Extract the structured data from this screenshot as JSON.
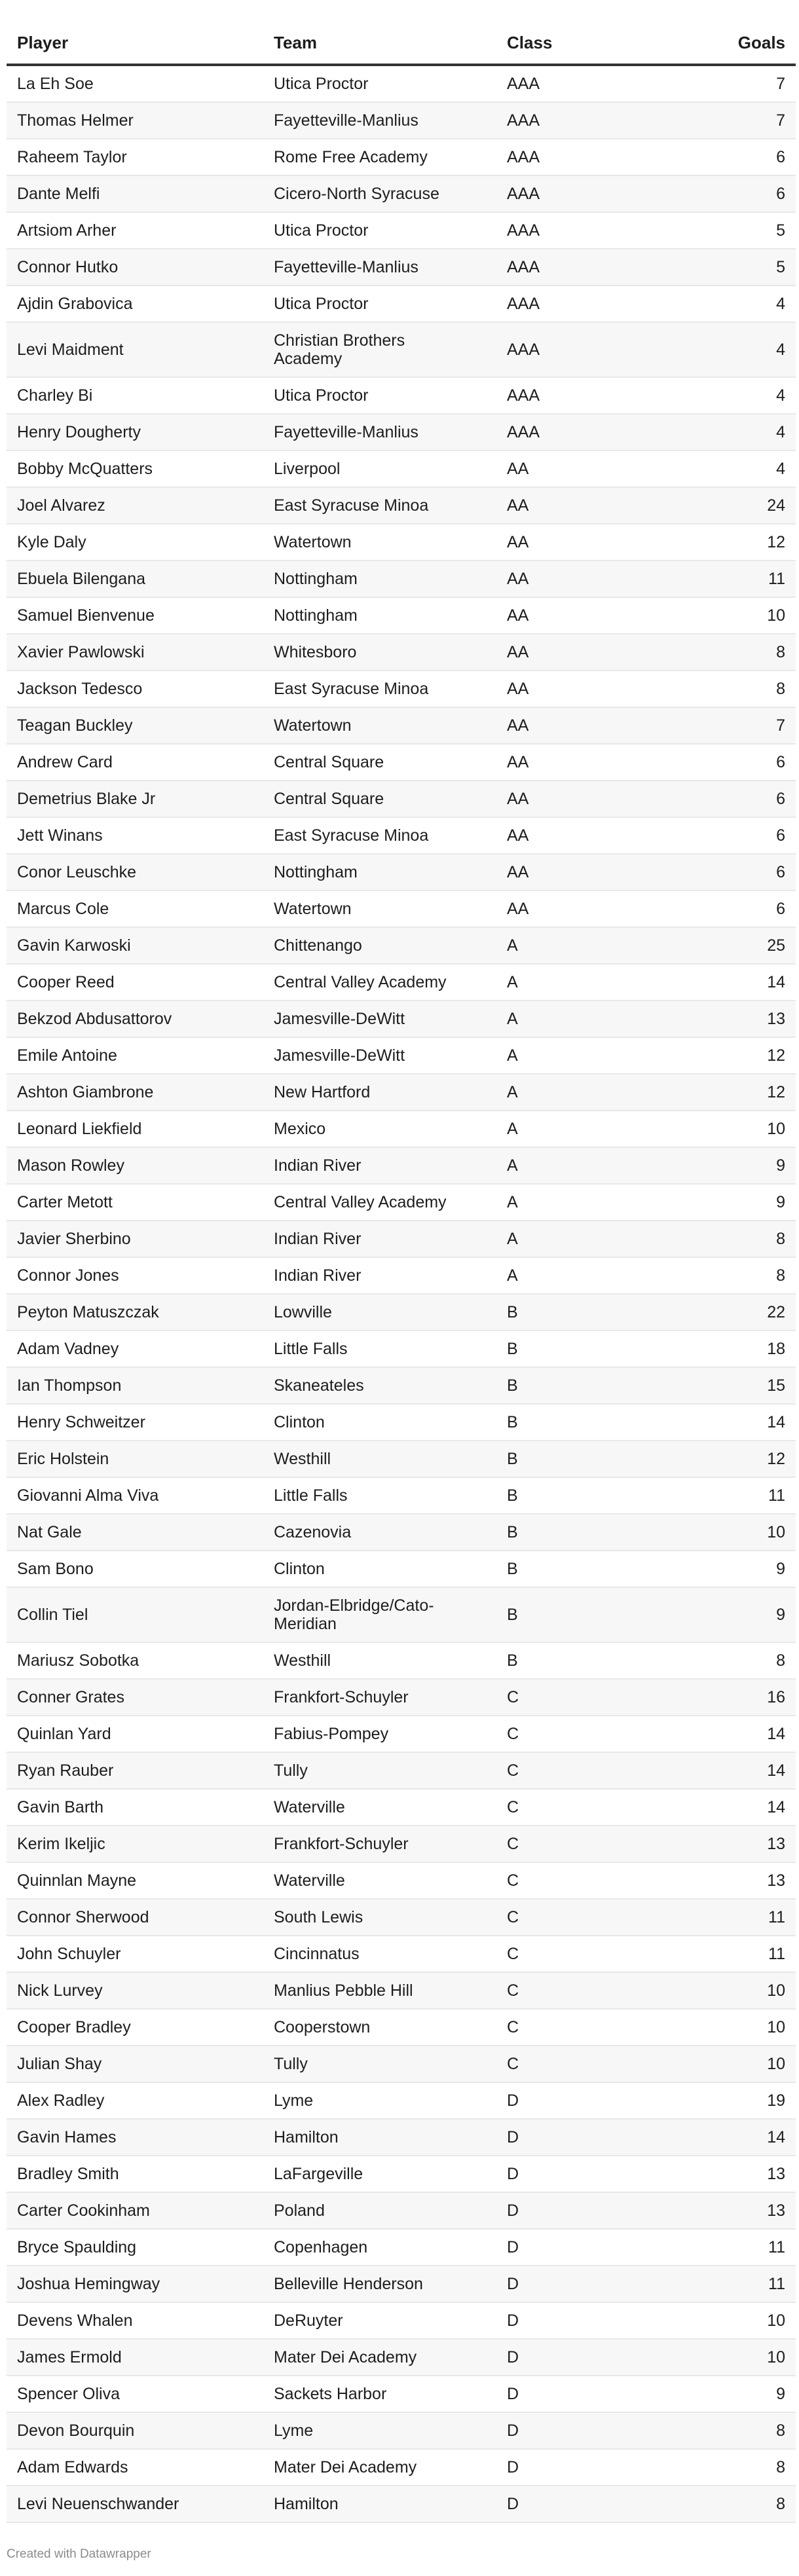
{
  "table": {
    "headers": {
      "player": "Player",
      "team": "Team",
      "class": "Class",
      "goals": "Goals"
    },
    "rows": [
      [
        "La Eh Soe",
        "Utica Proctor",
        "AAA",
        "7"
      ],
      [
        "Thomas Helmer",
        "Fayetteville-Manlius",
        "AAA",
        "7"
      ],
      [
        "Raheem Taylor",
        "Rome Free Academy",
        "AAA",
        "6"
      ],
      [
        "Dante Melfi",
        "Cicero-North Syracuse",
        "AAA",
        "6"
      ],
      [
        "Artsiom Arher",
        "Utica Proctor",
        "AAA",
        "5"
      ],
      [
        "Connor Hutko",
        "Fayetteville-Manlius",
        "AAA",
        "5"
      ],
      [
        "Ajdin Grabovica",
        "Utica Proctor",
        "AAA",
        "4"
      ],
      [
        "Levi Maidment",
        "Christian Brothers Academy",
        "AAA",
        "4"
      ],
      [
        "Charley Bi",
        "Utica Proctor",
        "AAA",
        "4"
      ],
      [
        "Henry Dougherty",
        "Fayetteville-Manlius",
        "AAA",
        "4"
      ],
      [
        "Bobby McQuatters",
        "Liverpool",
        "AA",
        "4"
      ],
      [
        "Joel Alvarez",
        "East Syracuse Minoa",
        "AA",
        "24"
      ],
      [
        "Kyle Daly",
        "Watertown",
        "AA",
        "12"
      ],
      [
        "Ebuela Bilengana",
        "Nottingham",
        "AA",
        "11"
      ],
      [
        "Samuel Bienvenue",
        "Nottingham",
        "AA",
        "10"
      ],
      [
        "Xavier Pawlowski",
        "Whitesboro",
        "AA",
        "8"
      ],
      [
        "Jackson Tedesco",
        "East Syracuse Minoa",
        "AA",
        "8"
      ],
      [
        "Teagan Buckley",
        "Watertown",
        "AA",
        "7"
      ],
      [
        "Andrew Card",
        "Central Square",
        "AA",
        "6"
      ],
      [
        "Demetrius Blake Jr",
        "Central Square",
        "AA",
        "6"
      ],
      [
        "Jett Winans",
        "East Syracuse Minoa",
        "AA",
        "6"
      ],
      [
        "Conor Leuschke",
        "Nottingham",
        "AA",
        "6"
      ],
      [
        "Marcus Cole",
        "Watertown",
        "AA",
        "6"
      ],
      [
        "Gavin Karwoski",
        "Chittenango",
        "A",
        "25"
      ],
      [
        "Cooper Reed",
        "Central Valley Academy",
        "A",
        "14"
      ],
      [
        "Bekzod Abdusattorov",
        "Jamesville-DeWitt",
        "A",
        "13"
      ],
      [
        "Emile Antoine",
        "Jamesville-DeWitt",
        "A",
        "12"
      ],
      [
        "Ashton Giambrone",
        "New Hartford",
        "A",
        "12"
      ],
      [
        "Leonard Liekfield",
        "Mexico",
        "A",
        "10"
      ],
      [
        "Mason Rowley",
        "Indian River",
        "A",
        "9"
      ],
      [
        "Carter Metott",
        "Central Valley Academy",
        "A",
        "9"
      ],
      [
        "Javier Sherbino",
        "Indian River",
        "A",
        "8"
      ],
      [
        "Connor Jones",
        "Indian River",
        "A",
        "8"
      ],
      [
        "Peyton Matuszczak",
        "Lowville",
        "B",
        "22"
      ],
      [
        "Adam Vadney",
        "Little Falls",
        "B",
        "18"
      ],
      [
        "Ian Thompson",
        "Skaneateles",
        "B",
        "15"
      ],
      [
        "Henry Schweitzer",
        "Clinton",
        "B",
        "14"
      ],
      [
        "Eric Holstein",
        "Westhill",
        "B",
        "12"
      ],
      [
        "Giovanni Alma Viva",
        "Little Falls",
        "B",
        "11"
      ],
      [
        "Nat Gale",
        "Cazenovia",
        "B",
        "10"
      ],
      [
        "Sam Bono",
        "Clinton",
        "B",
        "9"
      ],
      [
        "Collin Tiel",
        "Jordan-Elbridge/Cato-Meridian",
        "B",
        "9"
      ],
      [
        "Mariusz Sobotka",
        "Westhill",
        "B",
        "8"
      ],
      [
        "Conner Grates",
        "Frankfort-Schuyler",
        "C",
        "16"
      ],
      [
        "Quinlan Yard",
        "Fabius-Pompey",
        "C",
        "14"
      ],
      [
        "Ryan Rauber",
        "Tully",
        "C",
        "14"
      ],
      [
        "Gavin Barth",
        "Waterville",
        "C",
        "14"
      ],
      [
        "Kerim Ikeljic",
        "Frankfort-Schuyler",
        "C",
        "13"
      ],
      [
        "Quinnlan Mayne",
        "Waterville",
        "C",
        "13"
      ],
      [
        "Connor Sherwood",
        "South Lewis",
        "C",
        "11"
      ],
      [
        "John Schuyler",
        "Cincinnatus",
        "C",
        "11"
      ],
      [
        "Nick Lurvey",
        "Manlius Pebble Hill",
        "C",
        "10"
      ],
      [
        "Cooper Bradley",
        "Cooperstown",
        "C",
        "10"
      ],
      [
        "Julian Shay",
        "Tully",
        "C",
        "10"
      ],
      [
        "Alex Radley",
        "Lyme",
        "D",
        "19"
      ],
      [
        "Gavin Hames",
        "Hamilton",
        "D",
        "14"
      ],
      [
        "Bradley Smith",
        "LaFargeville",
        "D",
        "13"
      ],
      [
        "Carter Cookinham",
        "Poland",
        "D",
        "13"
      ],
      [
        "Bryce Spaulding",
        "Copenhagen",
        "D",
        "11"
      ],
      [
        "Joshua Hemingway",
        "Belleville Henderson",
        "D",
        "11"
      ],
      [
        "Devens Whalen",
        "DeRuyter",
        "D",
        "10"
      ],
      [
        "James Ermold",
        "Mater Dei Academy",
        "D",
        "10"
      ],
      [
        "Spencer Oliva",
        "Sackets Harbor",
        "D",
        "9"
      ],
      [
        "Devon Bourquin",
        "Lyme",
        "D",
        "8"
      ],
      [
        "Adam Edwards",
        "Mater Dei Academy",
        "D",
        "8"
      ],
      [
        "Levi Neuenschwander",
        "Hamilton",
        "D",
        "8"
      ]
    ]
  },
  "footer": {
    "credit": "Created with Datawrapper"
  },
  "colors": {
    "header_rule": "#333333",
    "stripe": "#f7f7f7",
    "row_border": "#e8e8e8",
    "footer_text": "#8c8c8c"
  }
}
